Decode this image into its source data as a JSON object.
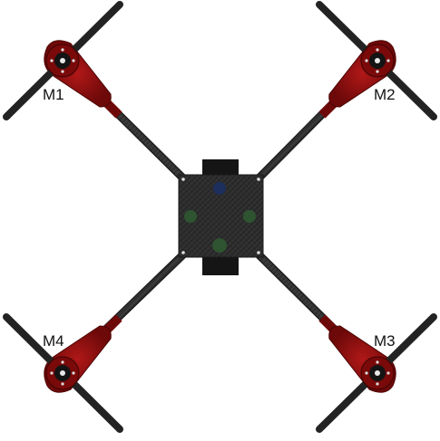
{
  "diagram": {
    "motors": [
      {
        "id": "m1",
        "label": "M1"
      },
      {
        "id": "m2",
        "label": "M2"
      },
      {
        "id": "m3",
        "label": "M3"
      },
      {
        "id": "m4",
        "label": "M4"
      }
    ],
    "colors": {
      "arm": "#2f2f2f",
      "arm_edge": "#1e1e1e",
      "motor_mount": "#8b1010",
      "motor_mount_dark": "#5c0707",
      "propeller": "#232323",
      "frame_plate": "#2a2a2a",
      "battery": "#151515",
      "status_led": "#1d2f5c",
      "sensor_led": "#2f5a33"
    },
    "components": {
      "center_plate": "carbon-frame-plate",
      "battery": "battery-pack",
      "leds": [
        "status-led",
        "sensor-led-left",
        "sensor-led-right",
        "sensor-led-bottom"
      ]
    }
  }
}
